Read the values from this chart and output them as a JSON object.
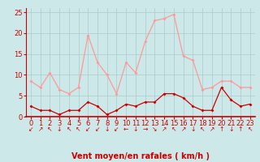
{
  "x": [
    0,
    1,
    2,
    3,
    4,
    5,
    6,
    7,
    8,
    9,
    10,
    11,
    12,
    13,
    14,
    15,
    16,
    17,
    18,
    19,
    20,
    21,
    22,
    23
  ],
  "vent_moyen": [
    2.5,
    1.5,
    1.5,
    0.5,
    1.5,
    1.5,
    3.5,
    2.5,
    0.5,
    1.5,
    3.0,
    2.5,
    3.5,
    3.5,
    5.5,
    5.5,
    4.5,
    2.5,
    1.5,
    1.5,
    7.0,
    4.0,
    2.5,
    3.0
  ],
  "rafales": [
    8.5,
    7.0,
    10.5,
    6.5,
    5.5,
    7.0,
    19.5,
    13.0,
    10.0,
    5.5,
    13.0,
    10.5,
    18.0,
    23.0,
    23.5,
    24.5,
    14.5,
    13.5,
    6.5,
    7.0,
    8.5,
    8.5,
    7.0,
    7.0
  ],
  "arrow_symbols": [
    "↙",
    "↗",
    "↖",
    "↓",
    "↖",
    "↖",
    "↙",
    "↙",
    "↓",
    "↙",
    "←",
    "↓",
    "→",
    "↘",
    "↗",
    "↖",
    "↗",
    "↓",
    "↖",
    "↗",
    "↑",
    "↓",
    "↑",
    "↖"
  ],
  "xlabel": "Vent moyen/en rafales ( km/h )",
  "ylim": [
    0,
    26
  ],
  "xlim": [
    -0.5,
    23.5
  ],
  "yticks": [
    0,
    5,
    10,
    15,
    20,
    25
  ],
  "xticks": [
    0,
    1,
    2,
    3,
    4,
    5,
    6,
    7,
    8,
    9,
    10,
    11,
    12,
    13,
    14,
    15,
    16,
    17,
    18,
    19,
    20,
    21,
    22,
    23
  ],
  "bg_color": "#cce8e8",
  "grid_color": "#aacccc",
  "line_color_moyen": "#cc0000",
  "line_color_rafales": "#ff9999",
  "xlabel_color": "#cc0000",
  "xlabel_fontsize": 7,
  "tick_fontsize": 6,
  "tick_color": "#cc0000",
  "arrow_fontsize": 5.5
}
